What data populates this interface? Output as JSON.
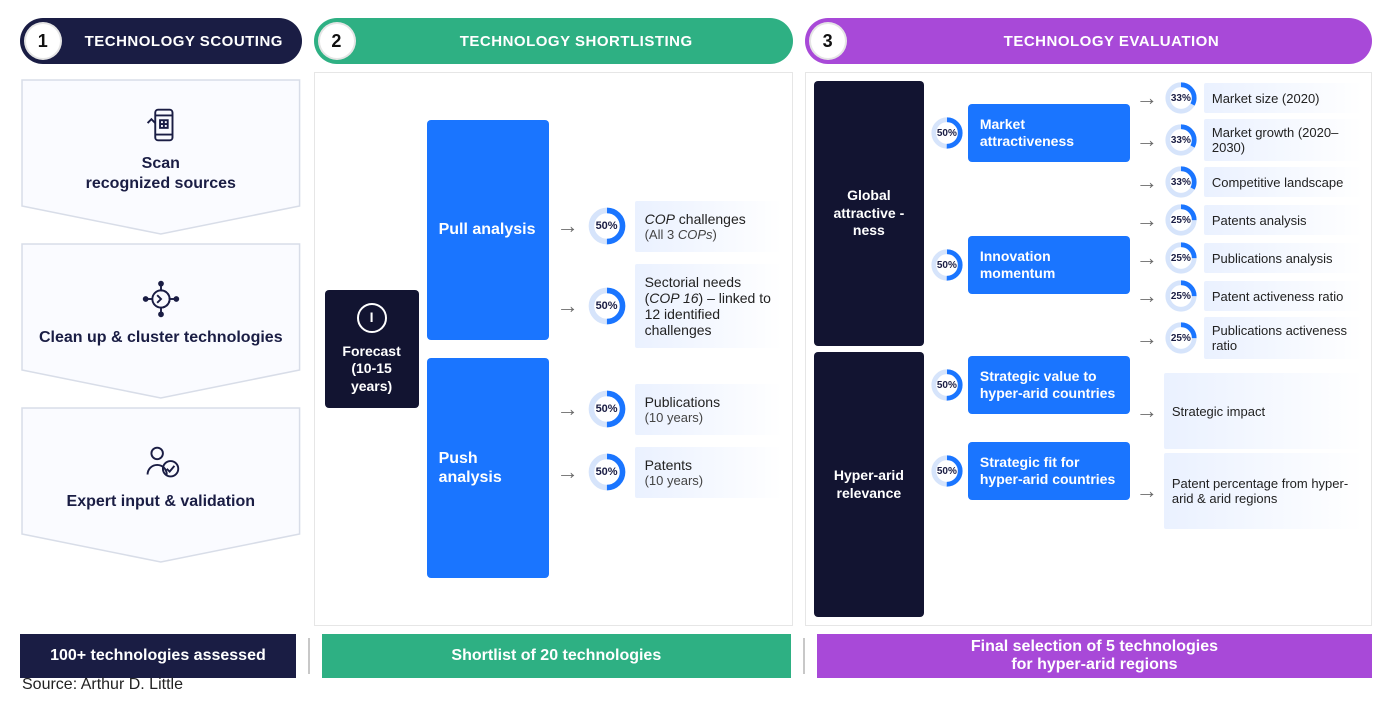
{
  "colors": {
    "navy": "#1a1d44",
    "green": "#2eb083",
    "purple": "#a849d8",
    "blue": "#1a75ff",
    "ring_fg": "#1a75ff",
    "ring_bg": "#d6e4fb",
    "light_box_start": "#eaf1ff",
    "light_box_end": "#ffffff"
  },
  "source": "Source: Arthur D. Little",
  "col1": {
    "num": "1",
    "title": "TECHNOLOGY SCOUTING",
    "steps": [
      {
        "icon": "scan-icon",
        "label": "Scan\nrecognized sources"
      },
      {
        "icon": "cluster-icon",
        "label": "Clean up & cluster technologies"
      },
      {
        "icon": "expert-icon",
        "label": "Expert input & validation"
      }
    ],
    "footer": "100+ technologies assessed"
  },
  "col2": {
    "num": "2",
    "title": "TECHNOLOGY SHORTLISTING",
    "forecast_num": "I",
    "forecast_label": "Forecast (10-15 years)",
    "pull_label": "Pull analysis",
    "push_label": "Push analysis",
    "items": [
      {
        "pct": 50,
        "main_html": "<span class='italic'>COP</span> challenges",
        "sub_html": "(All 3 <span class='italic'>COPs</span>)"
      },
      {
        "pct": 50,
        "main_html": "Sectorial needs (<span class='italic'>COP 16</span>) – linked to 12 identified challenges",
        "sub_html": ""
      },
      {
        "pct": 50,
        "main_html": "Publications",
        "sub_html": "(10 years)"
      },
      {
        "pct": 50,
        "main_html": "Patents",
        "sub_html": "(10 years)"
      }
    ],
    "footer": "Shortlist of 20 technologies"
  },
  "col3": {
    "num": "3",
    "title": "TECHNOLOGY EVALUATION",
    "left": [
      "Global attractive -ness",
      "Hyper-arid relevance"
    ],
    "mid": [
      {
        "pct": 50,
        "label": "Market attractiveness",
        "h": "h1"
      },
      {
        "pct": 50,
        "label": "Innovation momentum",
        "h": "h2"
      },
      {
        "pct": 50,
        "label": "Strategic value to hyper-arid countries",
        "h": "h3"
      },
      {
        "pct": 50,
        "label": "Strategic fit for hyper-arid countries",
        "h": "h4"
      }
    ],
    "right": [
      {
        "pct": 33,
        "label": "Market size (2020)"
      },
      {
        "pct": 33,
        "label": "Market growth (2020–2030)"
      },
      {
        "pct": 33,
        "label": "Competitive landscape"
      },
      {
        "pct": 25,
        "label": "Patents analysis"
      },
      {
        "pct": 25,
        "label": "Publications analysis"
      },
      {
        "pct": 25,
        "label": "Patent activeness ratio"
      },
      {
        "pct": 25,
        "label": "Publications activeness ratio"
      },
      {
        "pct": null,
        "label": "Strategic impact",
        "tall": true
      },
      {
        "pct": null,
        "label": "Patent percentage from hyper-arid & arid regions",
        "tall": true
      }
    ],
    "footer": "Final selection of 5 technologies\nfor hyper-arid regions"
  }
}
